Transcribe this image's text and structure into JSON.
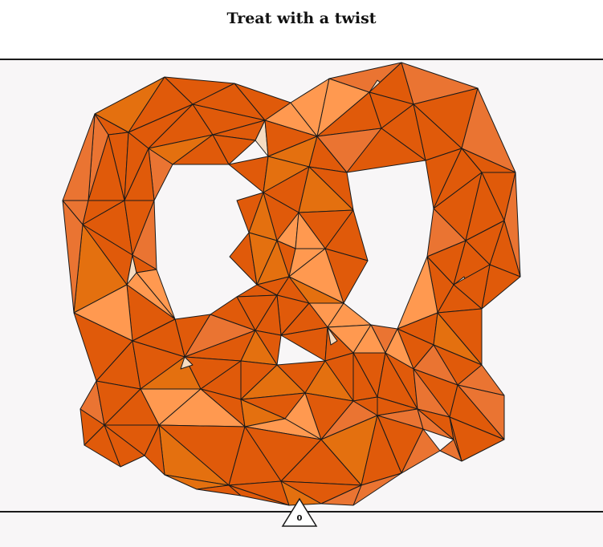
{
  "puzzle": {
    "title": "Treat with a twist",
    "counter": "0"
  },
  "palette": {
    "orange_dark": "#e05a0a",
    "orange": "#e4700f",
    "orange_light": "#ff9950",
    "orange_mid": "#ea7432",
    "cream": "#f6dcc1",
    "stroke": "#1a1a1a"
  }
}
